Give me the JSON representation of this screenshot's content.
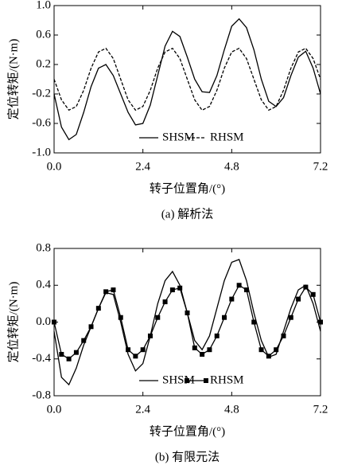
{
  "chart_data": [
    {
      "type": "line",
      "caption": "(a) 解析法",
      "xlabel": "转子位置角/(°)",
      "ylabel": "定位转矩/(N·m)",
      "xlim": [
        0,
        7.2
      ],
      "xticks": [
        {
          "value": 0,
          "label": "0.0"
        },
        2.4,
        4.8,
        7.2
      ],
      "ylim": [
        -1,
        1
      ],
      "yticks": [
        {
          "value": -1,
          "label": "-1.0"
        },
        -0.6,
        -0.2,
        0.2,
        0.6,
        {
          "value": 1,
          "label": "1.0"
        }
      ],
      "legend": "lower center",
      "x": [
        0,
        0.2,
        0.4,
        0.6,
        0.8,
        1,
        1.2,
        1.4,
        1.6,
        1.8,
        2,
        2.2,
        2.4,
        2.6,
        2.8,
        3,
        3.2,
        3.4,
        3.6,
        3.8,
        4,
        4.2,
        4.4,
        4.6,
        4.8,
        5,
        5.2,
        5.4,
        5.6,
        5.8,
        6,
        6.2,
        6.4,
        6.6,
        6.8,
        7,
        7.2
      ],
      "series": [
        {
          "name": "SHSM",
          "color": "#000000",
          "style": "solid",
          "marker": "none",
          "values": [
            -0.2,
            -0.65,
            -0.82,
            -0.75,
            -0.45,
            -0.1,
            0.15,
            0.2,
            0.05,
            -0.2,
            -0.45,
            -0.62,
            -0.6,
            -0.35,
            0.05,
            0.45,
            0.65,
            0.58,
            0.3,
            0,
            -0.17,
            -0.18,
            0.05,
            0.4,
            0.72,
            0.82,
            0.7,
            0.4,
            0,
            -0.3,
            -0.37,
            -0.25,
            0.05,
            0.3,
            0.38,
            0.15,
            -0.2
          ]
        },
        {
          "name": "RHSM",
          "color": "#000000",
          "style": "dashed",
          "marker": "none",
          "values": [
            0,
            -0.28,
            -0.42,
            -0.37,
            -0.15,
            0.15,
            0.37,
            0.42,
            0.28,
            0,
            -0.28,
            -0.42,
            -0.37,
            -0.15,
            0.15,
            0.37,
            0.42,
            0.28,
            0,
            -0.28,
            -0.42,
            -0.37,
            -0.15,
            0.15,
            0.37,
            0.42,
            0.28,
            0,
            -0.28,
            -0.42,
            -0.37,
            -0.15,
            0.15,
            0.37,
            0.42,
            0.28,
            0
          ]
        }
      ]
    },
    {
      "type": "line",
      "caption": "(b) 有限元法",
      "xlabel": "转子位置角/(°)",
      "ylabel": "定位转矩/(N·m)",
      "xlim": [
        0,
        7.2
      ],
      "xticks": [
        {
          "value": 0,
          "label": "0.0"
        },
        2.4,
        4.8,
        7.2
      ],
      "ylim": [
        -0.8,
        0.8
      ],
      "yticks": [
        -0.8,
        -0.4,
        {
          "value": 0,
          "label": "0.0"
        },
        0.4,
        0.8
      ],
      "legend": "lower center",
      "x": [
        0,
        0.2,
        0.4,
        0.6,
        0.8,
        1,
        1.2,
        1.4,
        1.6,
        1.8,
        2,
        2.2,
        2.4,
        2.6,
        2.8,
        3,
        3.2,
        3.4,
        3.6,
        3.8,
        4,
        4.2,
        4.4,
        4.6,
        4.8,
        5,
        5.2,
        5.4,
        5.6,
        5.8,
        6,
        6.2,
        6.4,
        6.6,
        6.8,
        7,
        7.2
      ],
      "series": [
        {
          "name": "SHSM",
          "color": "#000000",
          "style": "solid",
          "marker": "none",
          "values": [
            -0.1,
            -0.6,
            -0.68,
            -0.5,
            -0.25,
            -0.05,
            0.15,
            0.32,
            0.3,
            0,
            -0.35,
            -0.53,
            -0.45,
            -0.15,
            0.2,
            0.45,
            0.55,
            0.4,
            0.1,
            -0.2,
            -0.3,
            -0.15,
            0.15,
            0.45,
            0.65,
            0.68,
            0.45,
            0.1,
            -0.2,
            -0.38,
            -0.35,
            -0.1,
            0.15,
            0.35,
            0.4,
            0.2,
            -0.1
          ]
        },
        {
          "name": "RHSM",
          "color": "#000000",
          "style": "solid",
          "marker": "square",
          "values": [
            0,
            -0.35,
            -0.4,
            -0.33,
            -0.2,
            -0.05,
            0.15,
            0.33,
            0.35,
            0.05,
            -0.3,
            -0.37,
            -0.3,
            -0.15,
            0.05,
            0.22,
            0.35,
            0.37,
            0.1,
            -0.28,
            -0.35,
            -0.3,
            -0.15,
            0.05,
            0.25,
            0.4,
            0.35,
            0,
            -0.3,
            -0.37,
            -0.3,
            -0.15,
            0.05,
            0.25,
            0.38,
            0.3,
            0
          ]
        }
      ]
    }
  ]
}
